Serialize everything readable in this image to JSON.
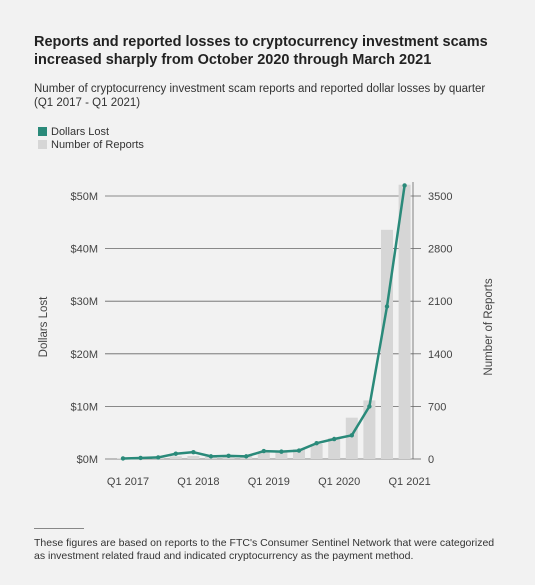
{
  "title": "Reports and reported losses to cryptocurrency investment scams increased sharply from October 2020 through March 2021",
  "subtitle": "Number of cryptocurrency investment scam reports and reported dollar losses by quarter (Q1 2017 - Q1 2021)",
  "footnote": "These figures are based on reports to the FTC's Consumer Sentinel Network that were categorized as investment related fraud and indicated cryptocurrency as the payment method.",
  "colors": {
    "line": "#2a8a7a",
    "bar": "#d6d6d6",
    "background": "#f2f2f2"
  },
  "chart_data": {
    "type": "bar+line",
    "categories": [
      "Q1 2017",
      "Q2 2017",
      "Q3 2017",
      "Q4 2017",
      "Q1 2018",
      "Q2 2018",
      "Q3 2018",
      "Q4 2018",
      "Q1 2019",
      "Q2 2019",
      "Q3 2019",
      "Q4 2019",
      "Q1 2020",
      "Q2 2020",
      "Q3 2020",
      "Q4 2020",
      "Q1 2021"
    ],
    "x_tick_labels": [
      "Q1 2017",
      "Q1 2018",
      "Q1 2019",
      "Q1 2020",
      "Q1 2021"
    ],
    "series": [
      {
        "name": "Dollars Lost",
        "type": "line",
        "axis": "left",
        "values": [
          0.1,
          0.2,
          0.3,
          1.0,
          1.3,
          0.5,
          0.6,
          0.5,
          1.5,
          1.4,
          1.6,
          3.0,
          3.8,
          4.5,
          10.0,
          29.0,
          52.0
        ]
      },
      {
        "name": "Number of Reports",
        "type": "bar",
        "axis": "right",
        "values": [
          10,
          15,
          20,
          35,
          40,
          30,
          35,
          45,
          90,
          100,
          130,
          200,
          280,
          550,
          780,
          3050,
          3650
        ]
      }
    ],
    "left_axis": {
      "label": "Dollars Lost",
      "ticks": [
        "$0M",
        "$10M",
        "$20M",
        "$30M",
        "$40M",
        "$50M"
      ],
      "range": [
        0,
        50
      ]
    },
    "right_axis": {
      "label": "Number of Reports",
      "ticks": [
        "0",
        "700",
        "1400",
        "2100",
        "2800",
        "3500"
      ],
      "range": [
        0,
        3500
      ]
    },
    "grid": true,
    "legend": "top-left"
  }
}
